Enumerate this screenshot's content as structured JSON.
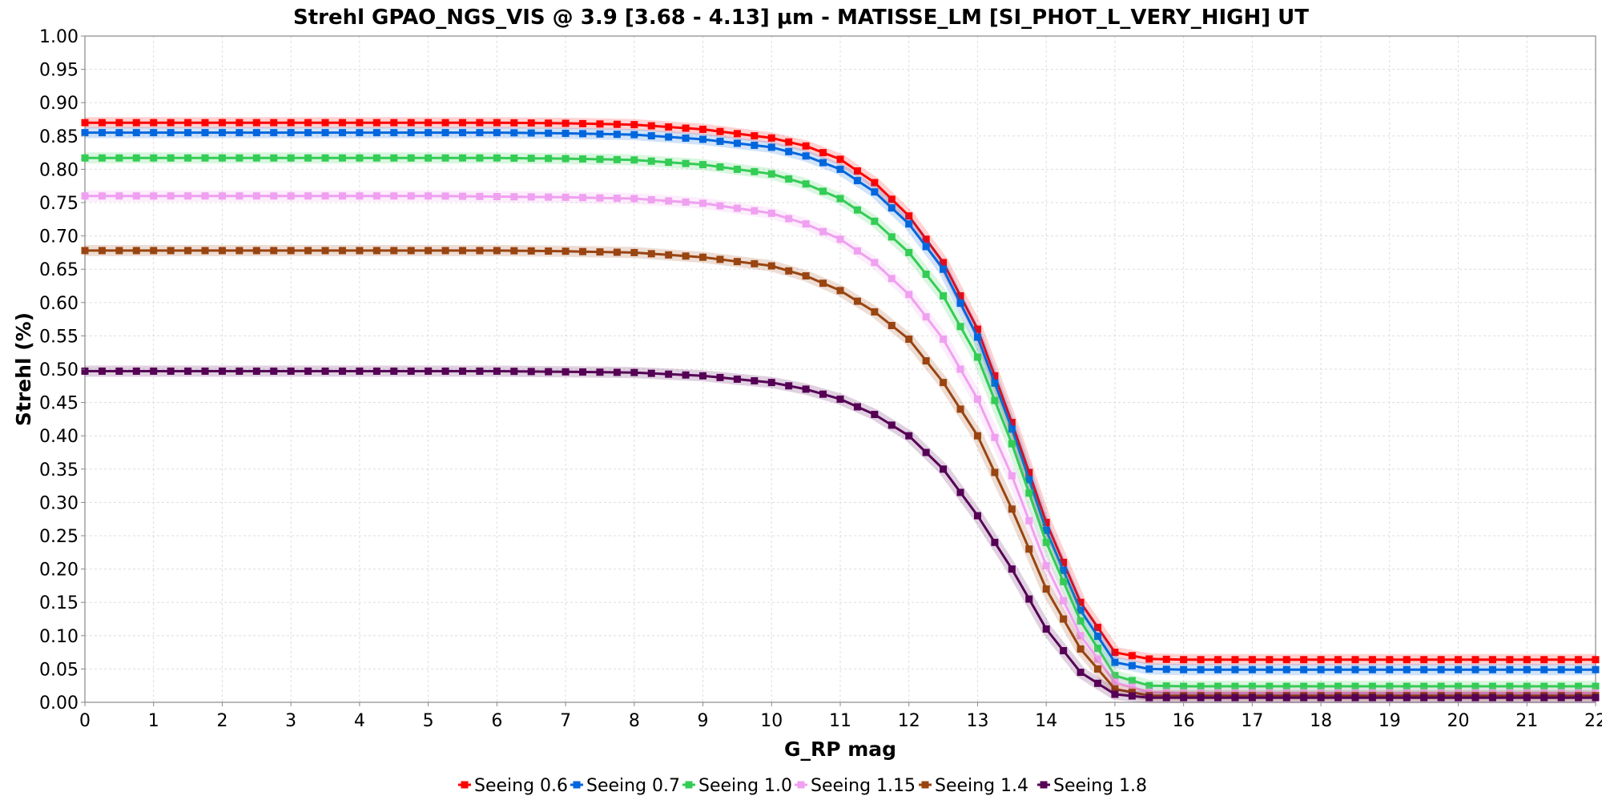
{
  "chart_data": {
    "type": "line",
    "title": "Strehl GPAO_NGS_VIS @ 3.9 [3.68 - 4.13] µm - MATISSE_LM [SI_PHOT_L_VERY_HIGH] UT",
    "xlabel": "G_RP mag",
    "ylabel": "Strehl (%)",
    "xlim": [
      0,
      22
    ],
    "ylim": [
      0,
      1
    ],
    "x_ticks": [
      0,
      1,
      2,
      3,
      4,
      5,
      6,
      7,
      8,
      9,
      10,
      11,
      12,
      13,
      14,
      15,
      16,
      17,
      18,
      19,
      20,
      21,
      22
    ],
    "y_ticks": [
      0.0,
      0.05,
      0.1,
      0.15,
      0.2,
      0.25,
      0.3,
      0.35,
      0.4,
      0.45,
      0.5,
      0.55,
      0.6,
      0.65,
      0.7,
      0.75,
      0.8,
      0.85,
      0.9,
      0.95,
      1.0
    ],
    "y_tick_labels": [
      "0.00",
      "0.05",
      "0.10",
      "0.15",
      "0.20",
      "0.25",
      "0.30",
      "0.35",
      "0.40",
      "0.45",
      "0.50",
      "0.55",
      "0.60",
      "0.65",
      "0.70",
      "0.75",
      "0.80",
      "0.85",
      "0.90",
      "0.95",
      "1.00"
    ],
    "x_tick_labels": [
      "0",
      "1",
      "2",
      "3",
      "4",
      "5",
      "6",
      "7",
      "8",
      "9",
      "10",
      "11",
      "12",
      "13",
      "14",
      "15",
      "16",
      "17",
      "18",
      "19",
      "20",
      "21",
      "22"
    ],
    "grid": true,
    "legend_position": "bottom",
    "x": [
      0,
      1,
      2,
      3,
      4,
      5,
      6,
      7,
      8,
      9,
      10,
      10.5,
      11,
      11.5,
      12,
      12.5,
      13,
      13.5,
      14,
      14.5,
      15,
      15.5,
      16,
      17,
      18,
      19,
      20,
      21,
      22
    ],
    "series": [
      {
        "name": "Seeing 0.6",
        "color": "#ff0000",
        "values": [
          0.87,
          0.87,
          0.87,
          0.87,
          0.87,
          0.87,
          0.87,
          0.869,
          0.867,
          0.86,
          0.847,
          0.835,
          0.815,
          0.78,
          0.73,
          0.66,
          0.56,
          0.42,
          0.27,
          0.15,
          0.075,
          0.065,
          0.064,
          0.064,
          0.064,
          0.064,
          0.064,
          0.064,
          0.064
        ]
      },
      {
        "name": "Seeing 0.7",
        "color": "#0066dd",
        "values": [
          0.855,
          0.855,
          0.855,
          0.855,
          0.855,
          0.855,
          0.855,
          0.854,
          0.852,
          0.845,
          0.833,
          0.82,
          0.8,
          0.766,
          0.718,
          0.65,
          0.548,
          0.41,
          0.258,
          0.138,
          0.06,
          0.05,
          0.049,
          0.049,
          0.049,
          0.049,
          0.049,
          0.049,
          0.049
        ]
      },
      {
        "name": "Seeing 1.0",
        "color": "#33cc55",
        "values": [
          0.817,
          0.817,
          0.817,
          0.817,
          0.817,
          0.817,
          0.817,
          0.816,
          0.814,
          0.807,
          0.793,
          0.778,
          0.756,
          0.722,
          0.675,
          0.61,
          0.518,
          0.388,
          0.24,
          0.122,
          0.04,
          0.025,
          0.024,
          0.024,
          0.024,
          0.024,
          0.024,
          0.024,
          0.024
        ]
      },
      {
        "name": "Seeing 1.15",
        "color": "#f0a0f0",
        "values": [
          0.76,
          0.76,
          0.76,
          0.76,
          0.76,
          0.76,
          0.759,
          0.758,
          0.756,
          0.749,
          0.734,
          0.718,
          0.695,
          0.66,
          0.612,
          0.545,
          0.455,
          0.34,
          0.205,
          0.1,
          0.03,
          0.015,
          0.014,
          0.014,
          0.014,
          0.014,
          0.014,
          0.014,
          0.014
        ]
      },
      {
        "name": "Seeing 1.4",
        "color": "#994411",
        "values": [
          0.678,
          0.678,
          0.678,
          0.678,
          0.678,
          0.678,
          0.678,
          0.677,
          0.675,
          0.668,
          0.655,
          0.64,
          0.618,
          0.586,
          0.545,
          0.48,
          0.4,
          0.29,
          0.17,
          0.08,
          0.02,
          0.01,
          0.01,
          0.01,
          0.01,
          0.01,
          0.01,
          0.01,
          0.01
        ]
      },
      {
        "name": "Seeing 1.8",
        "color": "#550055",
        "values": [
          0.497,
          0.497,
          0.497,
          0.497,
          0.497,
          0.497,
          0.497,
          0.496,
          0.495,
          0.49,
          0.48,
          0.47,
          0.455,
          0.432,
          0.4,
          0.35,
          0.28,
          0.2,
          0.11,
          0.045,
          0.012,
          0.007,
          0.007,
          0.007,
          0.007,
          0.007,
          0.007,
          0.007,
          0.007
        ]
      }
    ]
  }
}
